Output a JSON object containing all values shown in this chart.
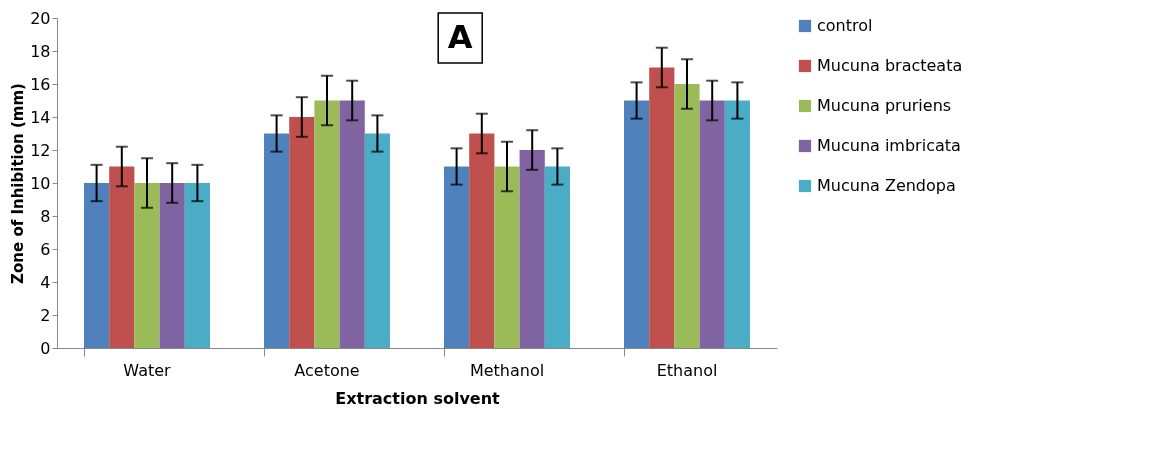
{
  "chart_data": {
    "type": "bar",
    "title": "A",
    "xlabel": "Extraction solvent",
    "ylabel": "Zone of Inhibition (mm)",
    "categories": [
      "Water",
      "Acetone",
      "Methanol",
      "Ethanol"
    ],
    "series": [
      {
        "name": "control",
        "color": "#4f81bd",
        "values": [
          10,
          13,
          11,
          15
        ],
        "errors": [
          1.1,
          1.1,
          1.1,
          1.1
        ]
      },
      {
        "name": "Mucuna bracteata",
        "color": "#c0504d",
        "values": [
          11,
          14,
          13,
          17
        ],
        "errors": [
          1.2,
          1.2,
          1.2,
          1.2
        ]
      },
      {
        "name": "Mucuna pruriens",
        "color": "#9bbb59",
        "values": [
          10,
          15,
          11,
          16
        ],
        "errors": [
          1.5,
          1.5,
          1.5,
          1.5
        ]
      },
      {
        "name": "Mucuna imbricata",
        "color": "#8064a2",
        "values": [
          10,
          15,
          12,
          15
        ],
        "errors": [
          1.2,
          1.2,
          1.2,
          1.2
        ]
      },
      {
        "name": "Mucuna Zendopa",
        "color": "#4bacc6",
        "values": [
          10,
          13,
          11,
          15
        ],
        "errors": [
          1.1,
          1.1,
          1.1,
          1.1
        ]
      }
    ],
    "ylim": [
      0,
      20
    ],
    "yticks": [
      0,
      2,
      4,
      6,
      8,
      10,
      12,
      14,
      16,
      18,
      20
    ],
    "grid": false,
    "legend": "right"
  }
}
